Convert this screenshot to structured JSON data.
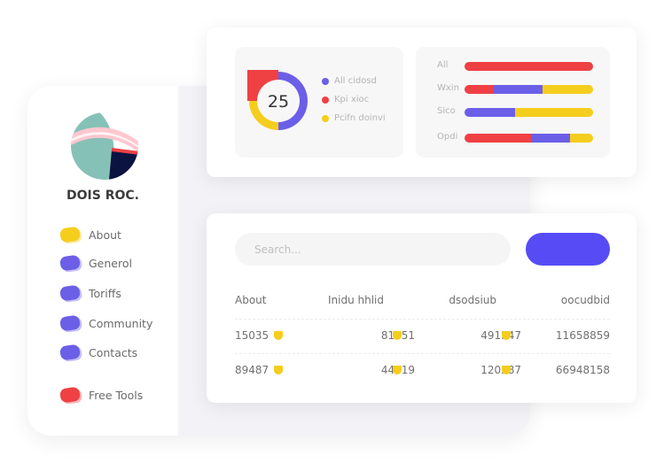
{
  "sidebar": {
    "brand": "DOIS ROC.",
    "items": [
      {
        "label": "About",
        "color": "#f5cd1c"
      },
      {
        "label": "Generol",
        "color": "#6b5fe8"
      },
      {
        "label": "Toriffs",
        "color": "#6b5fe8"
      },
      {
        "label": "Community",
        "color": "#6b5fe8"
      },
      {
        "label": "Contacts",
        "color": "#6b5fe8"
      },
      {
        "label": "Free Tools",
        "color": "#ef4044"
      }
    ]
  },
  "donut": {
    "value": "25",
    "segments": [
      {
        "color": "#6b5fe8",
        "share": 0.5
      },
      {
        "color": "#f5cd1c",
        "share": 0.25
      },
      {
        "color": "#ef4044",
        "share": 0.25
      }
    ],
    "legend": [
      {
        "label": "All cidosd",
        "color": "#6b5fe8"
      },
      {
        "label": "Kpi xioc",
        "color": "#ef4044"
      },
      {
        "label": "Pcifn doinvi",
        "color": "#f5cd1c"
      }
    ]
  },
  "bars": [
    {
      "label": "All",
      "segments": [
        {
          "color": "#ef4044",
          "pct": 100
        }
      ]
    },
    {
      "label": "Wxin",
      "segments": [
        {
          "color": "#ef4044",
          "pct": 23
        },
        {
          "color": "#6b5fe8",
          "pct": 38
        },
        {
          "color": "#f5cd1c",
          "pct": 39
        }
      ]
    },
    {
      "label": "Sico",
      "segments": [
        {
          "color": "#6b5fe8",
          "pct": 39
        },
        {
          "color": "#f5cd1c",
          "pct": 61
        }
      ]
    },
    {
      "label": "Opdi",
      "segments": [
        {
          "color": "#ef4044",
          "pct": 52
        },
        {
          "color": "#6b5fe8",
          "pct": 30
        },
        {
          "color": "#f5cd1c",
          "pct": 18
        }
      ]
    }
  ],
  "search": {
    "placeholder": "Search..."
  },
  "table": {
    "headers": [
      "About",
      "Inidu hhlid",
      "dsodsiub",
      "oocudbid"
    ],
    "rows": [
      [
        "15035",
        "81951",
        "491547",
        "11658859"
      ],
      [
        "89487",
        "44819",
        "120587",
        "66948158"
      ]
    ]
  }
}
